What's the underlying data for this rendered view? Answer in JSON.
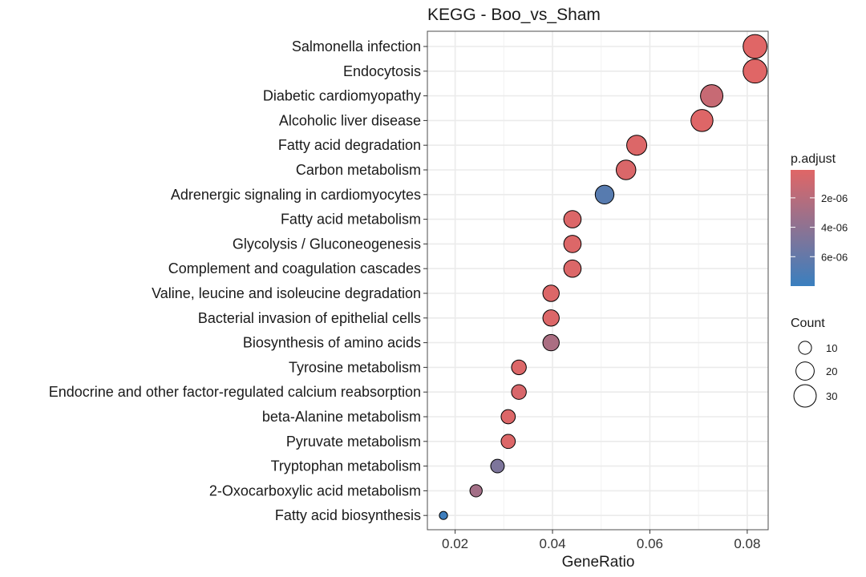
{
  "chart_data": {
    "type": "scatter",
    "title": "KEGG - Boo_vs_Sham",
    "xlabel": "GeneRatio",
    "ylabel": "",
    "xlim": [
      0.0143,
      0.0843
    ],
    "x_ticks": [
      0.02,
      0.04,
      0.06,
      0.08
    ],
    "x_tick_labels": [
      "0.02",
      "0.04",
      "0.06",
      "0.08"
    ],
    "grid": true,
    "series": [
      {
        "points": [
          {
            "term": "Salmonella infection",
            "gene_ratio": 0.0816,
            "count": 34,
            "p_adjust": 1.2e-07
          },
          {
            "term": "Endocytosis",
            "gene_ratio": 0.0816,
            "count": 34,
            "p_adjust": 1.2e-07
          },
          {
            "term": "Diabetic cardiomyopathy",
            "gene_ratio": 0.0727,
            "count": 30,
            "p_adjust": 1.3e-06
          },
          {
            "term": "Alcoholic liver disease",
            "gene_ratio": 0.0707,
            "count": 29,
            "p_adjust": 2e-07
          },
          {
            "term": "Fatty acid degradation",
            "gene_ratio": 0.0573,
            "count": 24,
            "p_adjust": 3e-07
          },
          {
            "term": "Carbon metabolism",
            "gene_ratio": 0.0551,
            "count": 23,
            "p_adjust": 4e-07
          },
          {
            "term": "Adrenergic signaling in cardiomyocytes",
            "gene_ratio": 0.0507,
            "count": 21,
            "p_adjust": 6.6e-06
          },
          {
            "term": "Fatty acid metabolism",
            "gene_ratio": 0.0441,
            "count": 18,
            "p_adjust": 3e-07
          },
          {
            "term": "Glycolysis / Gluconeogenesis",
            "gene_ratio": 0.0441,
            "count": 18,
            "p_adjust": 3e-07
          },
          {
            "term": "Complement and coagulation cascades",
            "gene_ratio": 0.0441,
            "count": 18,
            "p_adjust": 3e-07
          },
          {
            "term": "Valine, leucine and isoleucine degradation",
            "gene_ratio": 0.0397,
            "count": 16,
            "p_adjust": 3e-07
          },
          {
            "term": "Bacterial invasion of epithelial cells",
            "gene_ratio": 0.0397,
            "count": 16,
            "p_adjust": 3e-07
          },
          {
            "term": "Biosynthesis of amino acids",
            "gene_ratio": 0.0397,
            "count": 16,
            "p_adjust": 2.6e-06
          },
          {
            "term": "Tyrosine metabolism",
            "gene_ratio": 0.0331,
            "count": 13,
            "p_adjust": 3e-07
          },
          {
            "term": "Endocrine and other factor-regulated calcium reabsorption",
            "gene_ratio": 0.0331,
            "count": 13,
            "p_adjust": 5e-07
          },
          {
            "term": "beta-Alanine metabolism",
            "gene_ratio": 0.0309,
            "count": 12,
            "p_adjust": 3e-07
          },
          {
            "term": "Pyruvate metabolism",
            "gene_ratio": 0.0309,
            "count": 12,
            "p_adjust": 3e-07
          },
          {
            "term": "Tryptophan metabolism",
            "gene_ratio": 0.0287,
            "count": 11,
            "p_adjust": 4.8e-06
          },
          {
            "term": "2-Oxocarboxylic acid metabolism",
            "gene_ratio": 0.0243,
            "count": 9,
            "p_adjust": 3e-06
          },
          {
            "term": "Fatty acid biosynthesis",
            "gene_ratio": 0.0176,
            "count": 4,
            "p_adjust": 7.8e-06
          }
        ]
      }
    ],
    "color_legend": {
      "title": "p.adjust",
      "ticks": [
        2e-06,
        4e-06,
        6e-06
      ],
      "tick_labels": [
        "2e-06",
        "4e-06",
        "6e-06"
      ],
      "range": [
        1e-07,
        8e-06
      ],
      "low_color": "#e06666",
      "high_color": "#3a7fbf"
    },
    "size_legend": {
      "title": "Count",
      "values": [
        10,
        20,
        30
      ],
      "labels": [
        "10",
        "20",
        "30"
      ]
    }
  }
}
